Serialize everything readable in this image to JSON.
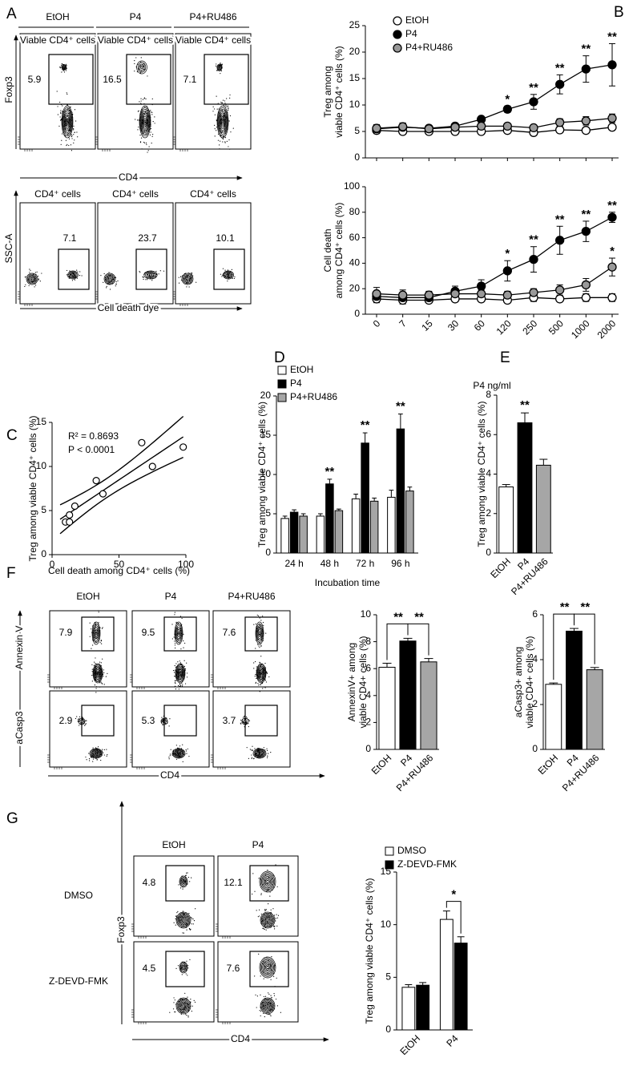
{
  "panel_labels": [
    "A",
    "B",
    "C",
    "D",
    "E",
    "F",
    "G"
  ],
  "flow_a": {
    "columns": [
      "EtOH",
      "P4",
      "P4+RU486"
    ],
    "rows": [
      {
        "title": "Viable CD4⁺ cells",
        "y_label": "Foxp3",
        "x_label": "CD4",
        "gates": [
          5.9,
          16.5,
          7.1
        ]
      },
      {
        "title": "CD4⁺ cells",
        "y_label": "SSC-A",
        "x_label": "Cell death dye",
        "gates": [
          7.1,
          23.7,
          10.1
        ]
      }
    ]
  },
  "flow_f": {
    "columns": [
      "EtOH",
      "P4",
      "P4+RU486"
    ],
    "x_label": "CD4",
    "rows": [
      {
        "y_label": "Annexin V",
        "gates": [
          7.9,
          9.5,
          7.6
        ]
      },
      {
        "y_label": "aCasp3",
        "gates": [
          2.9,
          5.3,
          3.7
        ]
      }
    ]
  },
  "flow_g": {
    "columns": [
      "EtOH",
      "P4"
    ],
    "y_label": "Foxp3",
    "x_label": "CD4",
    "rows": [
      {
        "name": "DMSO",
        "gates": [
          4.8,
          12.1
        ]
      },
      {
        "name": "Z-DEVD-FMK",
        "gates": [
          4.5,
          7.6
        ]
      }
    ]
  },
  "chart_data": [
    {
      "type": "line",
      "ylabel": [
        "Treg among",
        "viable CD4⁺ cells (%)"
      ],
      "ylim": [
        0,
        25
      ],
      "yticks": [
        0,
        5,
        10,
        15,
        20,
        25
      ],
      "categories": [
        null,
        null,
        null,
        null,
        null,
        null,
        null,
        null,
        null,
        null
      ],
      "legend": true,
      "series": [
        {
          "name": "EtOH",
          "color": "#ffffff",
          "values": [
            5.2,
            5.0,
            5.0,
            5.0,
            5.0,
            5.2,
            4.8,
            5.3,
            5.2,
            5.8
          ],
          "errors": [
            0.6,
            0.5,
            0.5,
            0.4,
            0.4,
            0.4,
            0.4,
            0.4,
            0.4,
            0.5
          ]
        },
        {
          "name": "P4",
          "color": "#000000",
          "values": [
            5.5,
            5.8,
            5.6,
            6.0,
            7.3,
            9.2,
            10.6,
            13.9,
            16.8,
            17.6
          ],
          "errors": [
            0.8,
            0.8,
            0.5,
            0.5,
            0.5,
            0.6,
            1.4,
            1.8,
            2.5,
            4.0
          ],
          "labels": [
            null,
            null,
            null,
            null,
            null,
            "*",
            "**",
            "**",
            "**",
            "**"
          ]
        },
        {
          "name": "P4+RU486",
          "color": "#999999",
          "values": [
            5.6,
            5.9,
            5.5,
            5.8,
            6.0,
            6.0,
            5.7,
            6.7,
            7.0,
            7.5
          ],
          "errors": [
            0.6,
            0.7,
            0.5,
            0.5,
            0.5,
            0.5,
            0.5,
            0.7,
            0.8,
            0.8
          ]
        }
      ]
    },
    {
      "type": "line",
      "ylabel": [
        "Cell death",
        "among CD4⁺ cells (%)"
      ],
      "xlabel": "P4 ng/ml",
      "ylim": [
        0,
        100
      ],
      "yticks": [
        0,
        20,
        40,
        60,
        80,
        100
      ],
      "categories": [
        0,
        7,
        15,
        30,
        60,
        120,
        250,
        500,
        1000,
        2000
      ],
      "series": [
        {
          "name": "EtOH",
          "color": "#ffffff",
          "values": [
            12,
            11,
            11,
            12,
            12,
            11,
            13,
            12,
            13,
            13
          ],
          "errors": [
            3,
            3,
            2,
            2,
            2,
            2,
            3,
            2,
            3,
            3
          ]
        },
        {
          "name": "P4",
          "color": "#000000",
          "values": [
            14,
            13,
            13,
            18,
            22,
            34,
            43,
            58,
            65,
            76
          ],
          "errors": [
            4,
            3,
            3,
            4,
            5,
            8,
            10,
            11,
            8,
            4
          ],
          "labels": [
            null,
            null,
            null,
            null,
            null,
            "*",
            "**",
            "**",
            "**",
            "**"
          ]
        },
        {
          "name": "P4+RU486",
          "color": "#999999",
          "values": [
            16,
            15,
            15,
            16,
            16,
            15,
            17,
            19,
            23,
            37
          ],
          "errors": [
            5,
            4,
            3,
            3,
            3,
            3,
            3,
            4,
            5,
            7
          ],
          "labels": [
            null,
            null,
            null,
            null,
            null,
            null,
            null,
            null,
            null,
            "*"
          ]
        }
      ]
    },
    {
      "type": "scatter",
      "ylabel": "Treg among viable CD4⁺ cells (%)",
      "xlabel": "Cell death among CD4⁺ cells (%)",
      "annotations": [
        "R² = 0.8693",
        "P < 0.0001"
      ],
      "xlim": [
        0,
        100
      ],
      "xticks": [
        0,
        50,
        100
      ],
      "ylim": [
        0,
        15
      ],
      "yticks": [
        0,
        5,
        10,
        15
      ],
      "x": [
        10,
        13,
        13,
        17,
        33,
        38,
        67,
        75,
        98
      ],
      "values": [
        3.7,
        3.7,
        4.5,
        5.5,
        8.4,
        6.9,
        12.7,
        10.0,
        12.2
      ]
    },
    {
      "type": "bar",
      "ylabel": "Treg among viable CD4⁺ cells (%)",
      "xlabel": "Incubation time",
      "ylim": [
        0,
        20
      ],
      "yticks": [
        0,
        5,
        10,
        15,
        20
      ],
      "categories": [
        "24 h",
        "48 h",
        "72 h",
        "96 h"
      ],
      "legend": true,
      "series": [
        {
          "name": "EtOH",
          "color": "#ffffff",
          "values": [
            4.4,
            4.7,
            6.9,
            7.1
          ],
          "errors": [
            0.3,
            0.3,
            0.6,
            0.9
          ]
        },
        {
          "name": "P4",
          "color": "#000000",
          "values": [
            5.2,
            8.8,
            14.0,
            15.8
          ],
          "errors": [
            0.3,
            0.6,
            1.3,
            1.9
          ],
          "labels": [
            null,
            "**",
            "**",
            "**"
          ]
        },
        {
          "name": "P4+RU486",
          "color": "#a6a6a6",
          "values": [
            4.7,
            5.4,
            6.6,
            7.9
          ],
          "errors": [
            0.3,
            0.2,
            0.4,
            0.5
          ]
        }
      ]
    },
    {
      "type": "bar",
      "ylabel": "Treg among viable CD4⁺ cells (%)",
      "ylim": [
        0,
        8
      ],
      "yticks": [
        0,
        2,
        4,
        6,
        8
      ],
      "categories": [
        "EtOH",
        "P4",
        "P4+RU486"
      ],
      "values": [
        3.35,
        6.6,
        4.45
      ],
      "errors": [
        0.12,
        0.5,
        0.3
      ],
      "colors": [
        "#ffffff",
        "#000000",
        "#a6a6a6"
      ],
      "labels": [
        null,
        "**",
        null
      ]
    },
    {
      "type": "bar",
      "ylabel": [
        "AnnexinV+ among",
        "viable CD4+ cells (%)"
      ],
      "ylim": [
        0,
        10
      ],
      "yticks": [
        0,
        2,
        4,
        6,
        8,
        10
      ],
      "categories": [
        "EtOH",
        "P4",
        "P4+RU486"
      ],
      "values": [
        6.1,
        8.05,
        6.5
      ],
      "errors": [
        0.3,
        0.2,
        0.25
      ],
      "colors": [
        "#ffffff",
        "#000000",
        "#a6a6a6"
      ],
      "comparisons": [
        {
          "categories": [
            "EtOH",
            "P4"
          ],
          "label": "**"
        },
        {
          "categories": [
            "P4",
            "P4+RU486"
          ],
          "label": "**"
        }
      ]
    },
    {
      "type": "bar",
      "ylabel": [
        "aCasp3+ among",
        "viable CD4+ cells (%)"
      ],
      "ylim": [
        0,
        6
      ],
      "yticks": [
        0,
        2,
        4,
        6
      ],
      "categories": [
        "EtOH",
        "P4",
        "P4+RU486"
      ],
      "values": [
        2.9,
        5.27,
        3.55
      ],
      "errors": [
        0.06,
        0.12,
        0.1
      ],
      "colors": [
        "#ffffff",
        "#000000",
        "#a6a6a6"
      ],
      "comparisons": [
        {
          "categories": [
            "EtOH",
            "P4"
          ],
          "label": "**"
        },
        {
          "categories": [
            "P4",
            "P4+RU486"
          ],
          "label": "**"
        }
      ]
    },
    {
      "type": "bar",
      "ylabel": "Treg among viable CD4⁺ cells (%)",
      "ylim": [
        0,
        15
      ],
      "yticks": [
        0,
        5,
        10,
        15
      ],
      "categories": [
        "EtOH",
        "P4"
      ],
      "legend": true,
      "series": [
        {
          "name": "DMSO",
          "color": "#ffffff",
          "values": [
            4.05,
            10.5
          ],
          "errors": [
            0.25,
            0.8
          ]
        },
        {
          "name": "Z-DEVD-FMK",
          "color": "#000000",
          "values": [
            4.25,
            8.25
          ],
          "errors": [
            0.25,
            0.6
          ]
        }
      ],
      "comparisons": [
        {
          "category": "P4",
          "label": "*"
        }
      ]
    }
  ]
}
